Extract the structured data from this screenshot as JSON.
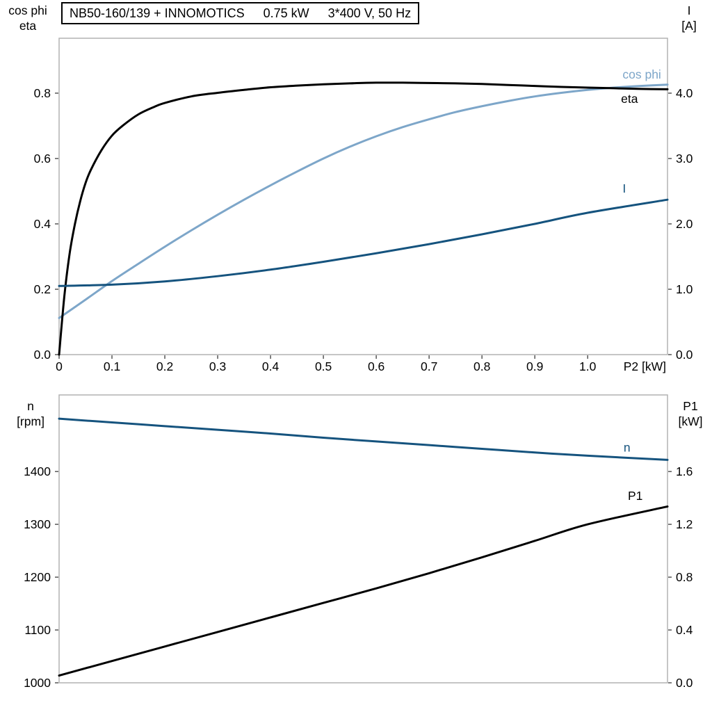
{
  "header": {
    "pump": "NB50-160/139 + INNOMOTICS",
    "power": "0.75 kW",
    "supply": "3*400 V, 50 Hz"
  },
  "colors": {
    "background": "#ffffff",
    "frame": "#b2b2b2",
    "tick": "#555555",
    "text": "#000000",
    "light_blue": "#7da6c9",
    "dark_blue": "#15537e",
    "black": "#000000"
  },
  "chart_data": [
    {
      "type": "line",
      "title": "NB50-160/139 + INNOMOTICS   0.75 kW   3*400 V, 50 Hz",
      "grid": false,
      "x_axis": {
        "label": "P2 [kW]",
        "range": [
          0,
          1.151
        ],
        "tick_values": [
          0,
          0.1,
          0.2,
          0.3,
          0.4,
          0.5,
          0.6,
          0.7,
          0.8,
          0.9,
          1.0
        ],
        "tick_labels": [
          "0",
          "0.1",
          "0.2",
          "0.3",
          "0.4",
          "0.5",
          "0.6",
          "0.7",
          "0.8",
          "0.9",
          "1.0"
        ]
      },
      "left_axis": {
        "label_lines": [
          "cos phi",
          "eta"
        ],
        "range": [
          0,
          0.968
        ],
        "tick_values": [
          0.0,
          0.2,
          0.4,
          0.6,
          0.8
        ],
        "tick_labels": [
          "0.0",
          "0.2",
          "0.4",
          "0.6",
          "0.8"
        ]
      },
      "right_axis": {
        "label_lines": [
          "I",
          "[A]"
        ],
        "range": [
          0,
          4.84
        ],
        "tick_values": [
          0.0,
          1.0,
          2.0,
          3.0,
          4.0
        ],
        "tick_labels": [
          "0.0",
          "1.0",
          "2.0",
          "3.0",
          "4.0"
        ]
      },
      "series": [
        {
          "name": "cos phi",
          "axis": "left",
          "color": "#7da6c9",
          "label": "cos phi",
          "label_at": [
            1.066,
            0.845
          ],
          "points": [
            [
              0,
              0.112
            ],
            [
              0.05,
              0.168
            ],
            [
              0.1,
              0.225
            ],
            [
              0.15,
              0.278
            ],
            [
              0.2,
              0.33
            ],
            [
              0.25,
              0.38
            ],
            [
              0.3,
              0.428
            ],
            [
              0.35,
              0.474
            ],
            [
              0.4,
              0.518
            ],
            [
              0.45,
              0.56
            ],
            [
              0.5,
              0.6
            ],
            [
              0.55,
              0.636
            ],
            [
              0.6,
              0.668
            ],
            [
              0.65,
              0.696
            ],
            [
              0.7,
              0.72
            ],
            [
              0.75,
              0.742
            ],
            [
              0.8,
              0.76
            ],
            [
              0.85,
              0.776
            ],
            [
              0.9,
              0.79
            ],
            [
              0.95,
              0.801
            ],
            [
              1.0,
              0.81
            ],
            [
              1.05,
              0.817
            ],
            [
              1.1,
              0.822
            ],
            [
              1.151,
              0.826
            ]
          ]
        },
        {
          "name": "eta",
          "axis": "left",
          "color": "#000000",
          "label": "eta",
          "label_at": [
            1.063,
            0.77
          ],
          "points": [
            [
              0,
              0
            ],
            [
              0.01,
              0.18
            ],
            [
              0.02,
              0.31
            ],
            [
              0.03,
              0.4
            ],
            [
              0.04,
              0.47
            ],
            [
              0.05,
              0.525
            ],
            [
              0.06,
              0.565
            ],
            [
              0.08,
              0.625
            ],
            [
              0.1,
              0.67
            ],
            [
              0.12,
              0.7
            ],
            [
              0.15,
              0.735
            ],
            [
              0.18,
              0.758
            ],
            [
              0.2,
              0.77
            ],
            [
              0.25,
              0.79
            ],
            [
              0.3,
              0.801
            ],
            [
              0.35,
              0.81
            ],
            [
              0.4,
              0.818
            ],
            [
              0.45,
              0.823
            ],
            [
              0.5,
              0.827
            ],
            [
              0.55,
              0.83
            ],
            [
              0.6,
              0.832
            ],
            [
              0.65,
              0.832
            ],
            [
              0.7,
              0.831
            ],
            [
              0.75,
              0.83
            ],
            [
              0.8,
              0.828
            ],
            [
              0.85,
              0.825
            ],
            [
              0.9,
              0.822
            ],
            [
              0.95,
              0.819
            ],
            [
              1.0,
              0.817
            ],
            [
              1.05,
              0.815
            ],
            [
              1.1,
              0.813
            ],
            [
              1.151,
              0.812
            ]
          ]
        },
        {
          "name": "I",
          "axis": "right",
          "color": "#15537e",
          "label": "I",
          "label_at": [
            1.066,
            2.48
          ],
          "points": [
            [
              0,
              1.05
            ],
            [
              0.1,
              1.07
            ],
            [
              0.2,
              1.12
            ],
            [
              0.3,
              1.2
            ],
            [
              0.4,
              1.3
            ],
            [
              0.5,
              1.42
            ],
            [
              0.6,
              1.55
            ],
            [
              0.7,
              1.69
            ],
            [
              0.8,
              1.84
            ],
            [
              0.9,
              2.0
            ],
            [
              1.0,
              2.17
            ],
            [
              1.151,
              2.37
            ]
          ]
        }
      ]
    },
    {
      "type": "line",
      "title": "",
      "grid": false,
      "x_axis": {
        "label": "",
        "range": [
          0,
          1.151
        ],
        "tick_values": [],
        "tick_labels": []
      },
      "left_axis": {
        "label_lines": [
          "n",
          "[rpm]"
        ],
        "range": [
          1000,
          1545
        ],
        "tick_values": [
          1000,
          1100,
          1200,
          1300,
          1400
        ],
        "tick_labels": [
          "1000",
          "1100",
          "1200",
          "1300",
          "1400"
        ]
      },
      "right_axis": {
        "label_lines": [
          "P1",
          "[kW]"
        ],
        "range": [
          0,
          2.18
        ],
        "tick_values": [
          0.0,
          0.4,
          0.8,
          1.2,
          1.6
        ],
        "tick_labels": [
          "0.0",
          "0.4",
          "0.8",
          "1.2",
          "1.6"
        ]
      },
      "series": [
        {
          "name": "n",
          "axis": "left",
          "color": "#15537e",
          "label": "n",
          "label_at": [
            1.068,
            1438
          ],
          "points": [
            [
              0,
              1500
            ],
            [
              0.1,
              1493
            ],
            [
              0.2,
              1486
            ],
            [
              0.3,
              1479
            ],
            [
              0.4,
              1472
            ],
            [
              0.5,
              1464
            ],
            [
              0.6,
              1457
            ],
            [
              0.7,
              1450
            ],
            [
              0.8,
              1443
            ],
            [
              0.9,
              1436
            ],
            [
              1.0,
              1430
            ],
            [
              1.151,
              1422
            ]
          ]
        },
        {
          "name": "P1",
          "axis": "right",
          "color": "#000000",
          "label": "P1",
          "label_at": [
            1.076,
            1.385
          ],
          "points": [
            [
              0,
              0.055
            ],
            [
              0.1,
              0.165
            ],
            [
              0.2,
              0.275
            ],
            [
              0.3,
              0.385
            ],
            [
              0.4,
              0.495
            ],
            [
              0.5,
              0.605
            ],
            [
              0.6,
              0.715
            ],
            [
              0.7,
              0.83
            ],
            [
              0.8,
              0.95
            ],
            [
              0.9,
              1.075
            ],
            [
              1.0,
              1.2
            ],
            [
              1.151,
              1.335
            ]
          ]
        }
      ]
    }
  ]
}
